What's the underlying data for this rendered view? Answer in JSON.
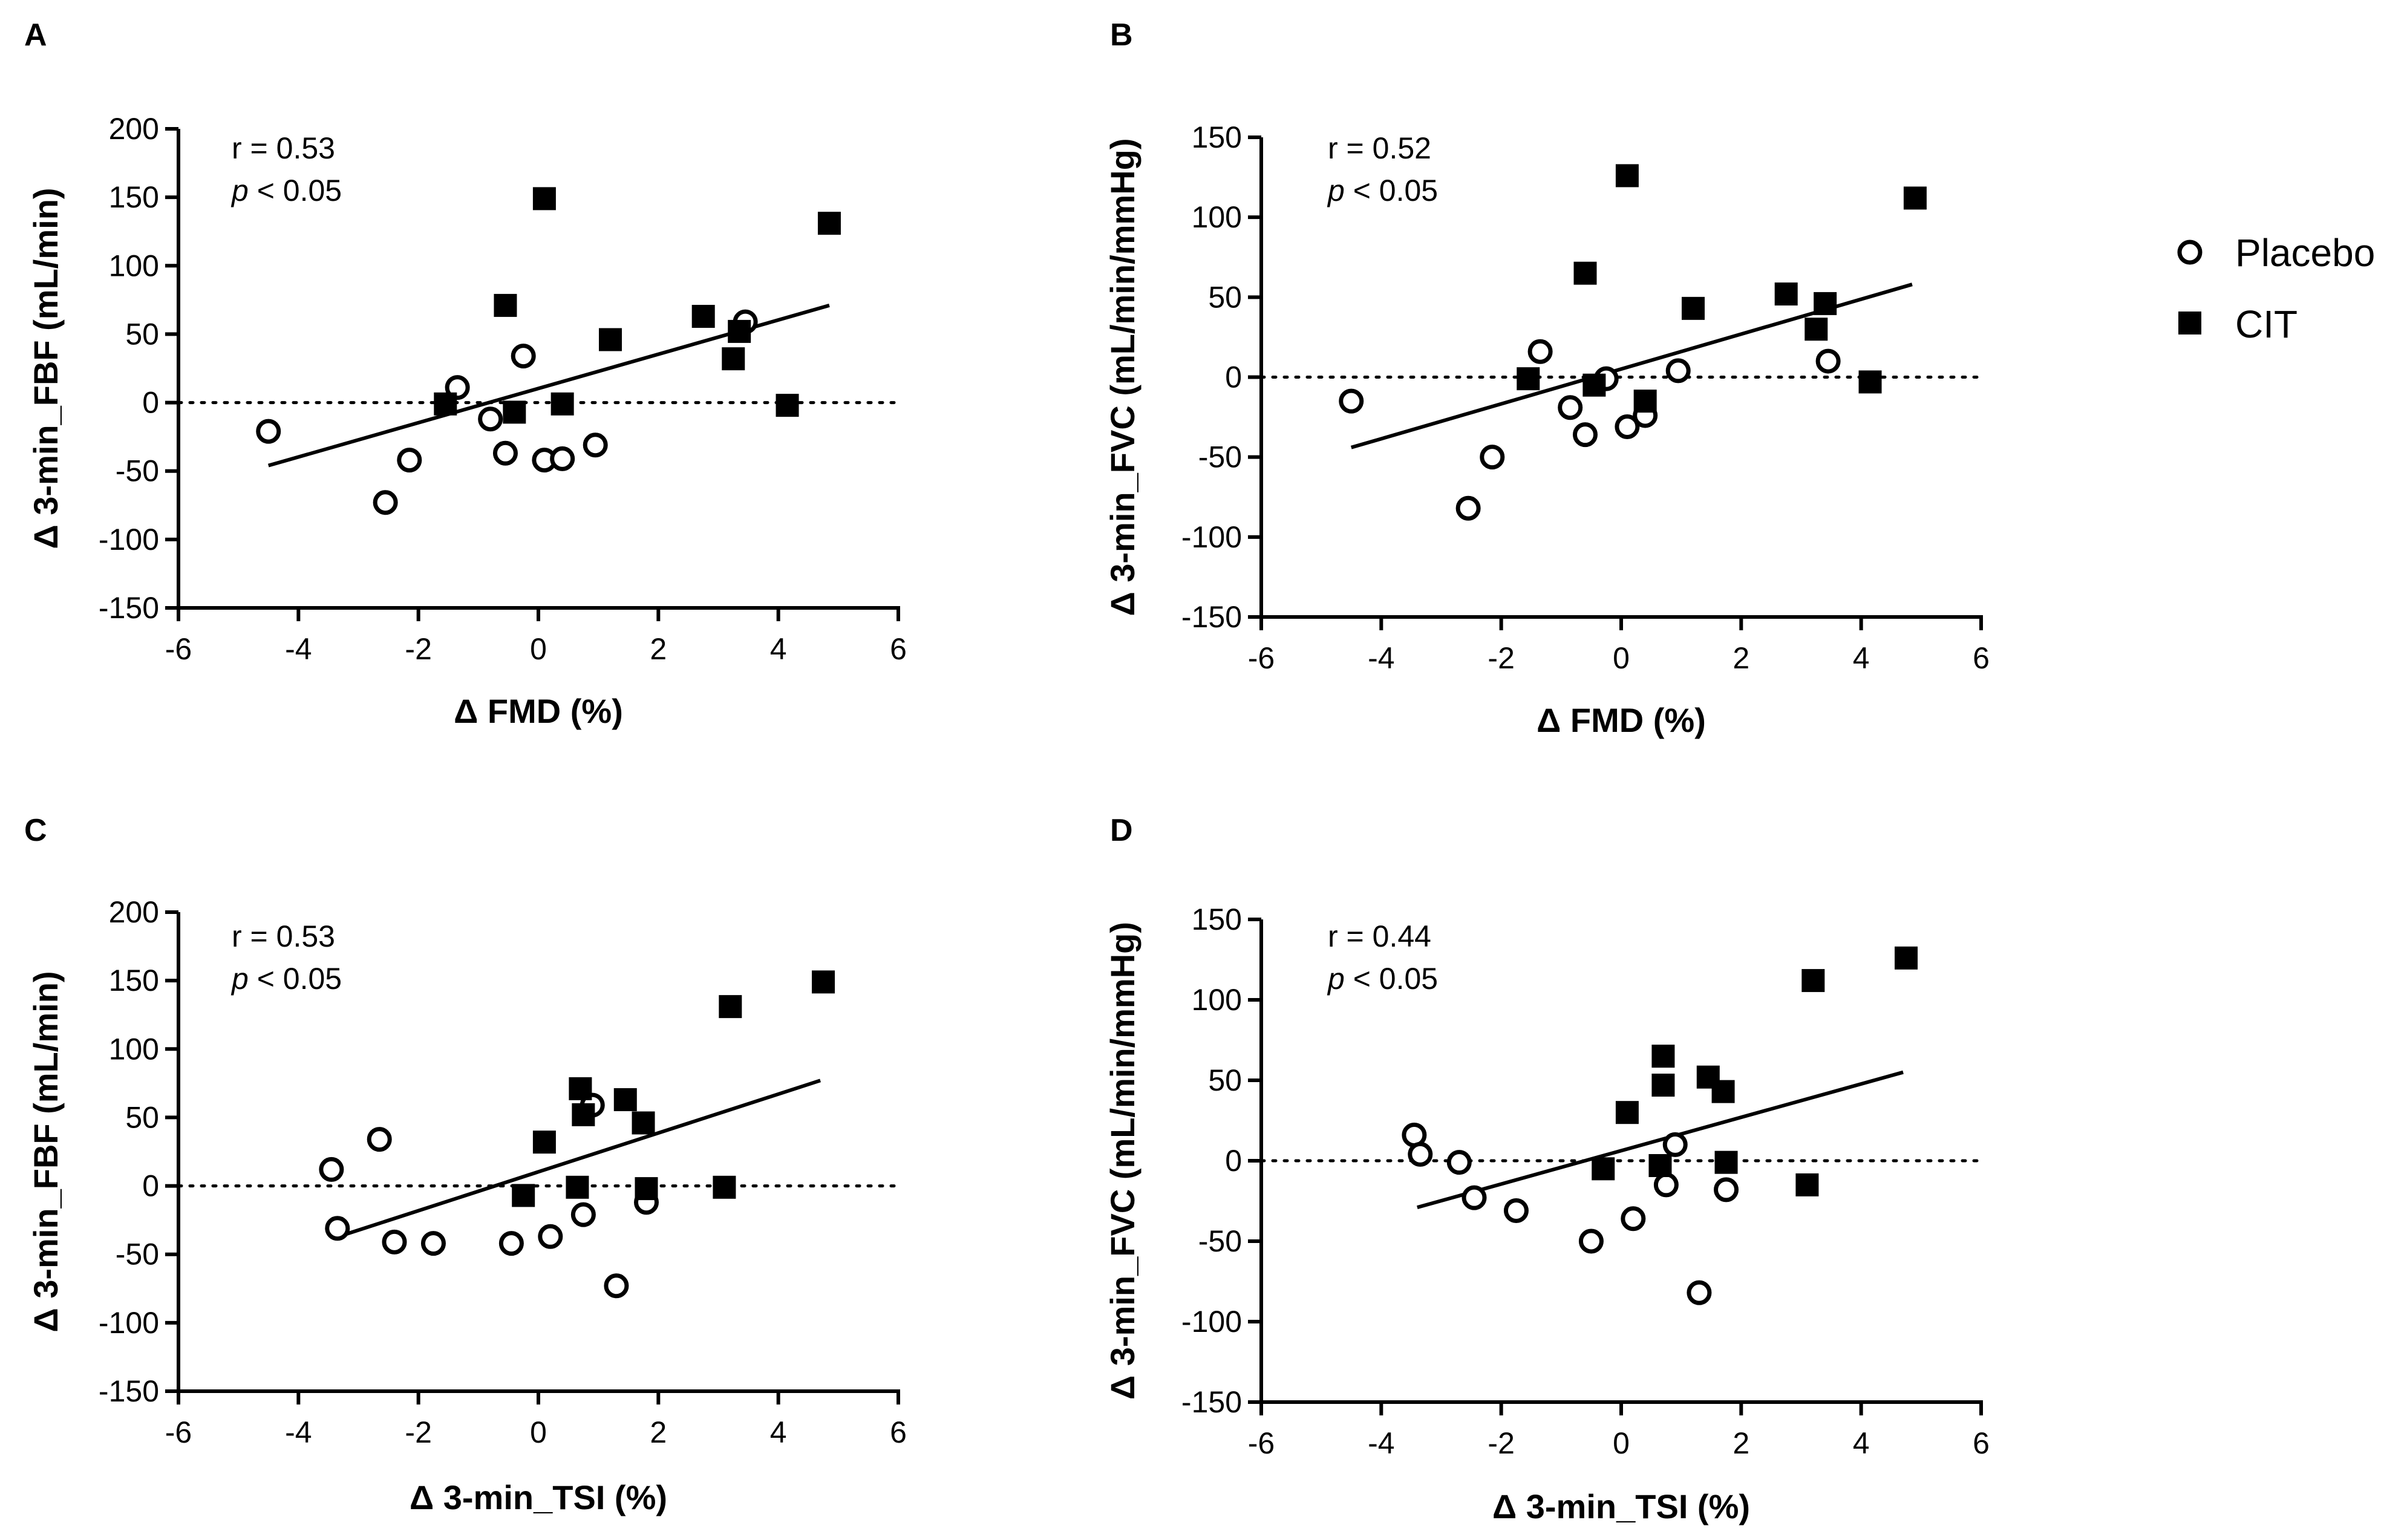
{
  "chart_data": [
    {
      "type": "scatter",
      "panel": "A",
      "xlabel": "Δ FMD (%)",
      "ylabel": "Δ 3-min_FBF (mL/min)",
      "xlim": [
        -6,
        6
      ],
      "ylim": [
        -150,
        200
      ],
      "xticks": [
        -6,
        -4,
        -2,
        0,
        2,
        4,
        6
      ],
      "yticks": [
        -150,
        -100,
        -50,
        0,
        50,
        100,
        150,
        200
      ],
      "annotation_r": "r = 0.53",
      "annotation_p_italic": "p",
      "annotation_p_rest": " < 0.05",
      "fit": {
        "x": [
          -4.5,
          4.85
        ],
        "y": [
          -46,
          71
        ]
      },
      "series": [
        {
          "name": "Placebo",
          "marker": "open-circle",
          "points": [
            [
              -4.5,
              -21
            ],
            [
              -2.55,
              -73
            ],
            [
              -2.15,
              -42
            ],
            [
              -1.35,
              11
            ],
            [
              -0.8,
              -12
            ],
            [
              -0.55,
              -37
            ],
            [
              -0.25,
              34
            ],
            [
              0.1,
              -42
            ],
            [
              0.4,
              -41
            ],
            [
              0.95,
              -31
            ],
            [
              3.45,
              59
            ]
          ]
        },
        {
          "name": "CIT",
          "marker": "filled-square",
          "points": [
            [
              -1.55,
              -1
            ],
            [
              -0.55,
              71
            ],
            [
              -0.4,
              -7
            ],
            [
              0.1,
              149
            ],
            [
              0.4,
              -1
            ],
            [
              1.2,
              46
            ],
            [
              2.75,
              63
            ],
            [
              3.25,
              32
            ],
            [
              3.35,
              52
            ],
            [
              4.15,
              -2
            ],
            [
              4.85,
              131
            ]
          ]
        }
      ]
    },
    {
      "type": "scatter",
      "panel": "B",
      "xlabel": "Δ FMD (%)",
      "ylabel": "Δ 3-min_FVC (mL/min/mmHg)",
      "xlim": [
        -6,
        6
      ],
      "ylim": [
        -150,
        150
      ],
      "xticks": [
        -6,
        -4,
        -2,
        0,
        2,
        4,
        6
      ],
      "yticks": [
        -150,
        -100,
        -50,
        0,
        50,
        100,
        150
      ],
      "annotation_r": "r = 0.52",
      "annotation_p_italic": "p",
      "annotation_p_rest": " < 0.05",
      "fit": {
        "x": [
          -4.5,
          4.85
        ],
        "y": [
          -44,
          58
        ]
      },
      "series": [
        {
          "name": "Placebo",
          "marker": "open-circle",
          "points": [
            [
              -4.5,
              -15
            ],
            [
              -2.55,
              -82
            ],
            [
              -2.15,
              -50
            ],
            [
              -1.35,
              16
            ],
            [
              -0.85,
              -19
            ],
            [
              -0.6,
              -36
            ],
            [
              -0.25,
              -1
            ],
            [
              0.1,
              -31
            ],
            [
              0.4,
              -24
            ],
            [
              0.95,
              4
            ],
            [
              3.45,
              10
            ]
          ]
        },
        {
          "name": "CIT",
          "marker": "filled-square",
          "points": [
            [
              -1.55,
              -1
            ],
            [
              -0.6,
              65
            ],
            [
              -0.45,
              -5
            ],
            [
              0.1,
              126
            ],
            [
              0.4,
              -15
            ],
            [
              1.2,
              43
            ],
            [
              2.75,
              52
            ],
            [
              3.25,
              30
            ],
            [
              3.4,
              46
            ],
            [
              4.15,
              -3
            ],
            [
              4.9,
              112
            ]
          ]
        }
      ]
    },
    {
      "type": "scatter",
      "panel": "C",
      "xlabel": "Δ 3-min_TSI (%)",
      "ylabel": "Δ 3-min_FBF (mL/min)",
      "xlim": [
        -6,
        6
      ],
      "ylim": [
        -150,
        200
      ],
      "xticks": [
        -6,
        -4,
        -2,
        0,
        2,
        4,
        6
      ],
      "yticks": [
        -150,
        -100,
        -50,
        0,
        50,
        100,
        150,
        200
      ],
      "annotation_r": "r = 0.53",
      "annotation_p_italic": "p",
      "annotation_p_rest": " < 0.05",
      "fit": {
        "x": [
          -3.4,
          4.7
        ],
        "y": [
          -38,
          77
        ]
      },
      "series": [
        {
          "name": "Placebo",
          "marker": "open-circle",
          "points": [
            [
              -3.45,
              12
            ],
            [
              -3.35,
              -31
            ],
            [
              -2.65,
              34
            ],
            [
              -2.4,
              -41
            ],
            [
              -1.75,
              -42
            ],
            [
              -0.45,
              -42
            ],
            [
              0.2,
              -37
            ],
            [
              0.75,
              -21
            ],
            [
              0.9,
              59
            ],
            [
              1.8,
              -12
            ],
            [
              1.3,
              -73
            ]
          ]
        },
        {
          "name": "CIT",
          "marker": "filled-square",
          "points": [
            [
              -0.25,
              -7
            ],
            [
              0.1,
              32
            ],
            [
              0.65,
              -1
            ],
            [
              0.7,
              71
            ],
            [
              0.75,
              52
            ],
            [
              1.45,
              63
            ],
            [
              1.75,
              46
            ],
            [
              1.8,
              -2
            ],
            [
              3.1,
              -1
            ],
            [
              3.2,
              131
            ],
            [
              4.75,
              149
            ]
          ]
        }
      ]
    },
    {
      "type": "scatter",
      "panel": "D",
      "xlabel": "Δ 3-min_TSI (%)",
      "ylabel": "Δ 3-min_FVC (mL/min/mmHg)",
      "xlim": [
        -6,
        6
      ],
      "ylim": [
        -150,
        150
      ],
      "xticks": [
        -6,
        -4,
        -2,
        0,
        2,
        4,
        6
      ],
      "yticks": [
        -150,
        -100,
        -50,
        0,
        50,
        100,
        150
      ],
      "annotation_r": "r = 0.44",
      "annotation_p_italic": "p",
      "annotation_p_rest": " < 0.05",
      "fit": {
        "x": [
          -3.4,
          4.7
        ],
        "y": [
          -29,
          55
        ]
      },
      "series": [
        {
          "name": "Placebo",
          "marker": "open-circle",
          "points": [
            [
              -3.45,
              16
            ],
            [
              -3.35,
              4
            ],
            [
              -2.7,
              -1
            ],
            [
              -2.45,
              -23
            ],
            [
              -1.75,
              -31
            ],
            [
              -0.5,
              -50
            ],
            [
              0.2,
              -36
            ],
            [
              0.75,
              -15
            ],
            [
              0.9,
              10
            ],
            [
              1.75,
              -18
            ],
            [
              1.3,
              -82
            ]
          ]
        },
        {
          "name": "CIT",
          "marker": "filled-square",
          "points": [
            [
              -0.3,
              -5
            ],
            [
              0.1,
              30
            ],
            [
              0.65,
              -3
            ],
            [
              0.7,
              65
            ],
            [
              0.7,
              47
            ],
            [
              1.45,
              52
            ],
            [
              1.7,
              43
            ],
            [
              1.75,
              -1
            ],
            [
              3.1,
              -15
            ],
            [
              3.2,
              112
            ],
            [
              4.75,
              126
            ]
          ]
        }
      ]
    }
  ],
  "legend": {
    "items": [
      {
        "label": "Placebo",
        "marker": "open-circle"
      },
      {
        "label": "CIT",
        "marker": "filled-square"
      }
    ]
  }
}
